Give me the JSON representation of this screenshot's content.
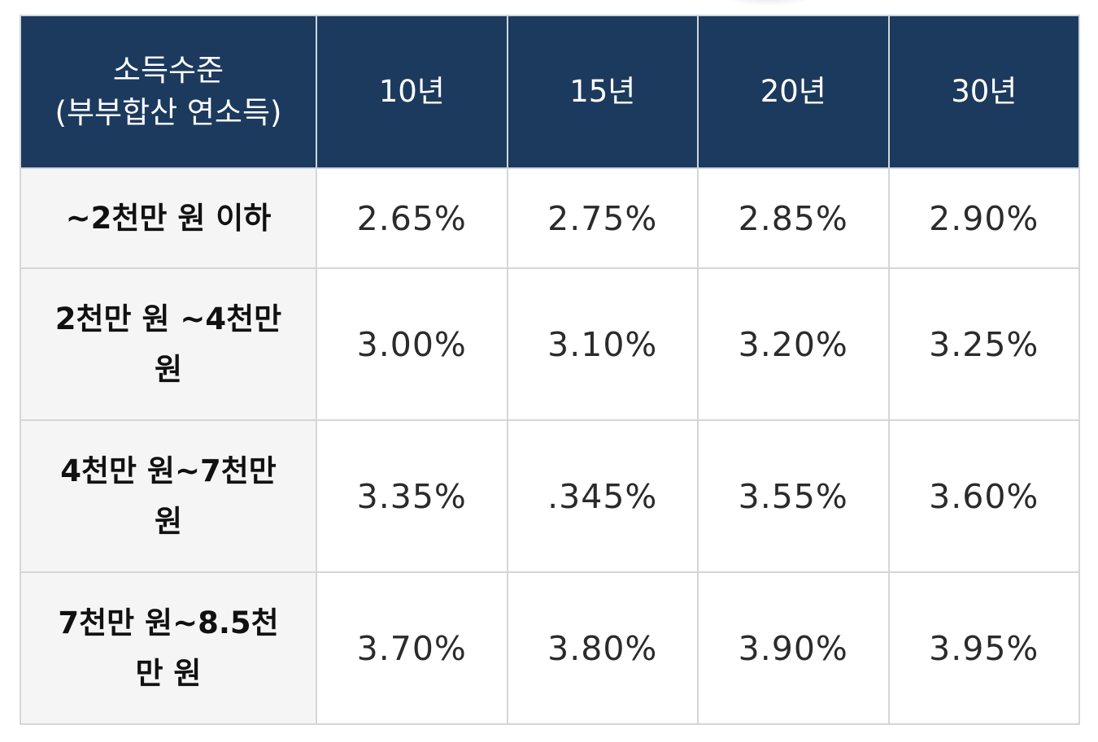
{
  "header": {
    "income_label": "소득수준\n(부부합산 연소득)",
    "terms": [
      "10년",
      "15년",
      "20년",
      "30년"
    ]
  },
  "rows": [
    {
      "income": "~2천만 원 이하",
      "rates": [
        "2.65%",
        "2.75%",
        "2.85%",
        "2.90%"
      ]
    },
    {
      "income": "2천만 원 ~4천만 원",
      "rates": [
        "3.00%",
        "3.10%",
        "3.20%",
        "3.25%"
      ]
    },
    {
      "income": "4천만 원~7천만 원",
      "rates": [
        "3.35%",
        ".345%",
        "3.55%",
        "3.60%"
      ]
    },
    {
      "income": "7천만 원~8.5천만 원",
      "rates": [
        "3.70%",
        "3.80%",
        "3.90%",
        "3.95%"
      ]
    }
  ],
  "colors": {
    "header_bg": "#1c3a5e",
    "header_text": "#ffffff",
    "income_cell_bg": "#f5f5f5",
    "border": "#d6d6d6"
  }
}
